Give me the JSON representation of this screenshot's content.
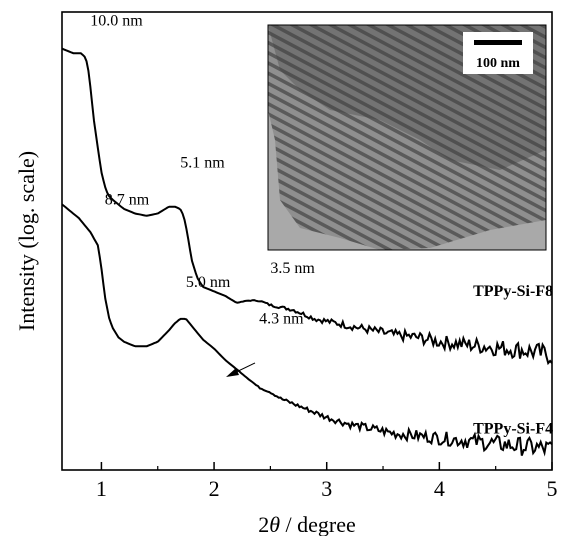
{
  "chart_data": {
    "type": "line",
    "xlabel_prefix": "2",
    "xlabel_theta": "θ",
    "xlabel_rest": " / degree",
    "ylabel": "Intensity (log. scale)",
    "xlim": [
      0.65,
      5.0
    ],
    "ylim": [
      0,
      1
    ],
    "y_scale": "log",
    "x_ticks": [
      1,
      2,
      3,
      4,
      5
    ],
    "x_tick_labels": [
      "1",
      "2",
      "3",
      "4",
      "5"
    ],
    "grid": false,
    "series": [
      {
        "name": "TPPy-Si-F8",
        "x": [
          0.65,
          0.75,
          0.82,
          0.86,
          0.88,
          0.9,
          0.93,
          0.97,
          1.0,
          1.03,
          1.06,
          1.1,
          1.15,
          1.2,
          1.3,
          1.4,
          1.5,
          1.6,
          1.65,
          1.7,
          1.73,
          1.76,
          1.8,
          1.85,
          1.9,
          1.95,
          2.0,
          2.1,
          2.2,
          2.3,
          2.4,
          2.5,
          2.6,
          2.7,
          2.8,
          2.9,
          3.0,
          3.2,
          3.4,
          3.6,
          3.8,
          4.0,
          4.2,
          4.4,
          4.6,
          4.8,
          5.0
        ],
        "y": [
          0.92,
          0.91,
          0.91,
          0.9,
          0.88,
          0.84,
          0.77,
          0.7,
          0.65,
          0.62,
          0.6,
          0.59,
          0.58,
          0.57,
          0.56,
          0.555,
          0.56,
          0.575,
          0.575,
          0.57,
          0.555,
          0.52,
          0.46,
          0.42,
          0.4,
          0.395,
          0.39,
          0.38,
          0.365,
          0.37,
          0.37,
          0.36,
          0.355,
          0.35,
          0.34,
          0.33,
          0.325,
          0.315,
          0.305,
          0.295,
          0.29,
          0.28,
          0.275,
          0.27,
          0.265,
          0.26,
          0.25
        ]
      },
      {
        "name": "TPPy-Si-F4",
        "x": [
          0.65,
          0.7,
          0.8,
          0.9,
          0.97,
          1.0,
          1.03,
          1.07,
          1.1,
          1.15,
          1.2,
          1.3,
          1.4,
          1.5,
          1.6,
          1.65,
          1.7,
          1.75,
          1.8,
          1.85,
          1.9,
          2.0,
          2.1,
          2.2,
          2.3,
          2.4,
          2.5,
          2.6,
          2.7,
          2.8,
          3.0,
          3.2,
          3.4,
          3.6,
          3.8,
          4.0,
          4.2,
          4.4,
          4.6,
          4.8,
          5.0
        ],
        "y": [
          0.58,
          0.57,
          0.55,
          0.52,
          0.49,
          0.44,
          0.38,
          0.33,
          0.31,
          0.29,
          0.28,
          0.27,
          0.27,
          0.28,
          0.305,
          0.32,
          0.33,
          0.33,
          0.315,
          0.3,
          0.285,
          0.265,
          0.24,
          0.22,
          0.2,
          0.18,
          0.17,
          0.155,
          0.145,
          0.135,
          0.115,
          0.1,
          0.09,
          0.08,
          0.075,
          0.07,
          0.065,
          0.06,
          0.055,
          0.05,
          0.045
        ]
      }
    ],
    "annotations": [
      {
        "text": "10.0 nm",
        "x": 0.9,
        "y": 0.97
      },
      {
        "text": "5.1 nm",
        "x": 1.7,
        "y": 0.66
      },
      {
        "text": "3.5 nm",
        "x": 2.5,
        "y": 0.43
      },
      {
        "text": "8.7 nm",
        "x": 1.03,
        "y": 0.58
      },
      {
        "text": "5.0 nm",
        "x": 1.75,
        "y": 0.4
      },
      {
        "text": "4.3 nm",
        "x": 2.4,
        "y": 0.32
      },
      {
        "text": "TPPy-Si-F8",
        "x": 4.3,
        "y": 0.38
      },
      {
        "text": "TPPy-Si-F4",
        "x": 4.3,
        "y": 0.08
      }
    ],
    "inset": {
      "type": "micrograph",
      "scale_bar_label": "100 nm"
    }
  }
}
